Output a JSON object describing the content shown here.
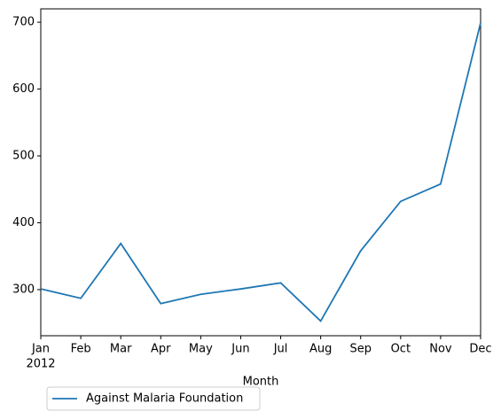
{
  "chart_data": {
    "type": "line",
    "x_label": "Month",
    "categories": [
      "Jan",
      "Feb",
      "Mar",
      "Apr",
      "May",
      "Jun",
      "Jul",
      "Aug",
      "Sep",
      "Oct",
      "Nov",
      "Dec"
    ],
    "year_label": "2012",
    "series": [
      {
        "name": "Against Malaria Foundation",
        "color": "#1f77b4",
        "values": [
          301,
          287,
          369,
          279,
          293,
          301,
          310,
          253,
          358,
          432,
          458,
          699
        ]
      }
    ],
    "ylim": [
      231,
      720
    ],
    "yticks": [
      300,
      400,
      500,
      600,
      700
    ],
    "grid": false,
    "legend": "below"
  }
}
